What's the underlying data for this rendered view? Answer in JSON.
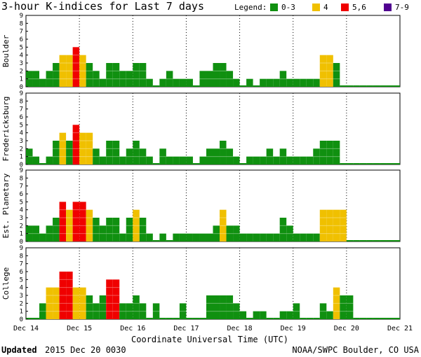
{
  "title": "3-hour K-indices for Last 7 days",
  "legend": {
    "label": "Legend:",
    "items": [
      {
        "label": "0-3",
        "color": "#109010"
      },
      {
        "label": "4",
        "color": "#f0c000"
      },
      {
        "label": "5,6",
        "color": "#f00000"
      },
      {
        "label": "7-9",
        "color": "#500090"
      }
    ]
  },
  "xlabel": "Coordinate Universal Time (UTC)",
  "x_ticks": [
    "Dec 14",
    "Dec 15",
    "Dec 16",
    "Dec 17",
    "Dec 18",
    "Dec 19",
    "Dec 20",
    "Dec 21"
  ],
  "footer": {
    "updated_label": "Updated",
    "updated_value": "2015 Dec 20 0030",
    "credit": "NOAA/SWPC Boulder, CO USA"
  },
  "chart_data": {
    "type": "bar",
    "interval_hours": 3,
    "ylim": [
      0,
      9
    ],
    "y_ticks": [
      0,
      1,
      2,
      3,
      4,
      5,
      6,
      7,
      8,
      9
    ],
    "color_scale": [
      {
        "range": "0-3",
        "color": "#109010"
      },
      {
        "range": "4",
        "color": "#f0c000"
      },
      {
        "range": "5,6",
        "color": "#f00000"
      },
      {
        "range": "7-9",
        "color": "#500090"
      }
    ],
    "panels": [
      {
        "name": "Boulder",
        "values": [
          2,
          2,
          1,
          2,
          3,
          4,
          4,
          5,
          4,
          3,
          2,
          1,
          3,
          3,
          2,
          2,
          3,
          3,
          1,
          0,
          1,
          2,
          1,
          1,
          1,
          0,
          2,
          2,
          3,
          3,
          2,
          1,
          0,
          1,
          0,
          1,
          1,
          1,
          2,
          1,
          1,
          1,
          1,
          1,
          4,
          4,
          3,
          0,
          0,
          0,
          0,
          0,
          0,
          0,
          0,
          0
        ]
      },
      {
        "name": "Fredericksburg",
        "values": [
          2,
          1,
          0,
          1,
          3,
          4,
          3,
          5,
          4,
          4,
          2,
          1,
          3,
          3,
          1,
          2,
          3,
          2,
          1,
          0,
          2,
          1,
          1,
          1,
          1,
          0,
          1,
          2,
          2,
          3,
          2,
          1,
          0,
          1,
          1,
          1,
          2,
          1,
          2,
          1,
          1,
          1,
          1,
          2,
          3,
          3,
          3,
          0,
          0,
          0,
          0,
          0,
          0,
          0,
          0,
          0
        ]
      },
      {
        "name": "Est. Planetary",
        "values": [
          2,
          2,
          1,
          2,
          3,
          5,
          4,
          5,
          5,
          4,
          3,
          2,
          3,
          3,
          1,
          3,
          4,
          3,
          1,
          0,
          1,
          0,
          1,
          1,
          1,
          1,
          1,
          1,
          2,
          4,
          2,
          2,
          1,
          1,
          1,
          1,
          1,
          1,
          3,
          2,
          1,
          1,
          1,
          1,
          4,
          4,
          4,
          4,
          0,
          0,
          0,
          0,
          0,
          0,
          0,
          0
        ]
      },
      {
        "name": "College",
        "values": [
          0,
          0,
          2,
          4,
          4,
          6,
          6,
          4,
          4,
          3,
          2,
          3,
          5,
          5,
          2,
          2,
          3,
          2,
          0,
          2,
          0,
          0,
          0,
          2,
          0,
          0,
          0,
          3,
          3,
          3,
          3,
          2,
          1,
          0,
          1,
          1,
          0,
          0,
          1,
          1,
          2,
          0,
          0,
          0,
          2,
          1,
          4,
          3,
          3,
          0,
          0,
          0,
          0,
          0,
          0,
          0
        ]
      }
    ]
  }
}
